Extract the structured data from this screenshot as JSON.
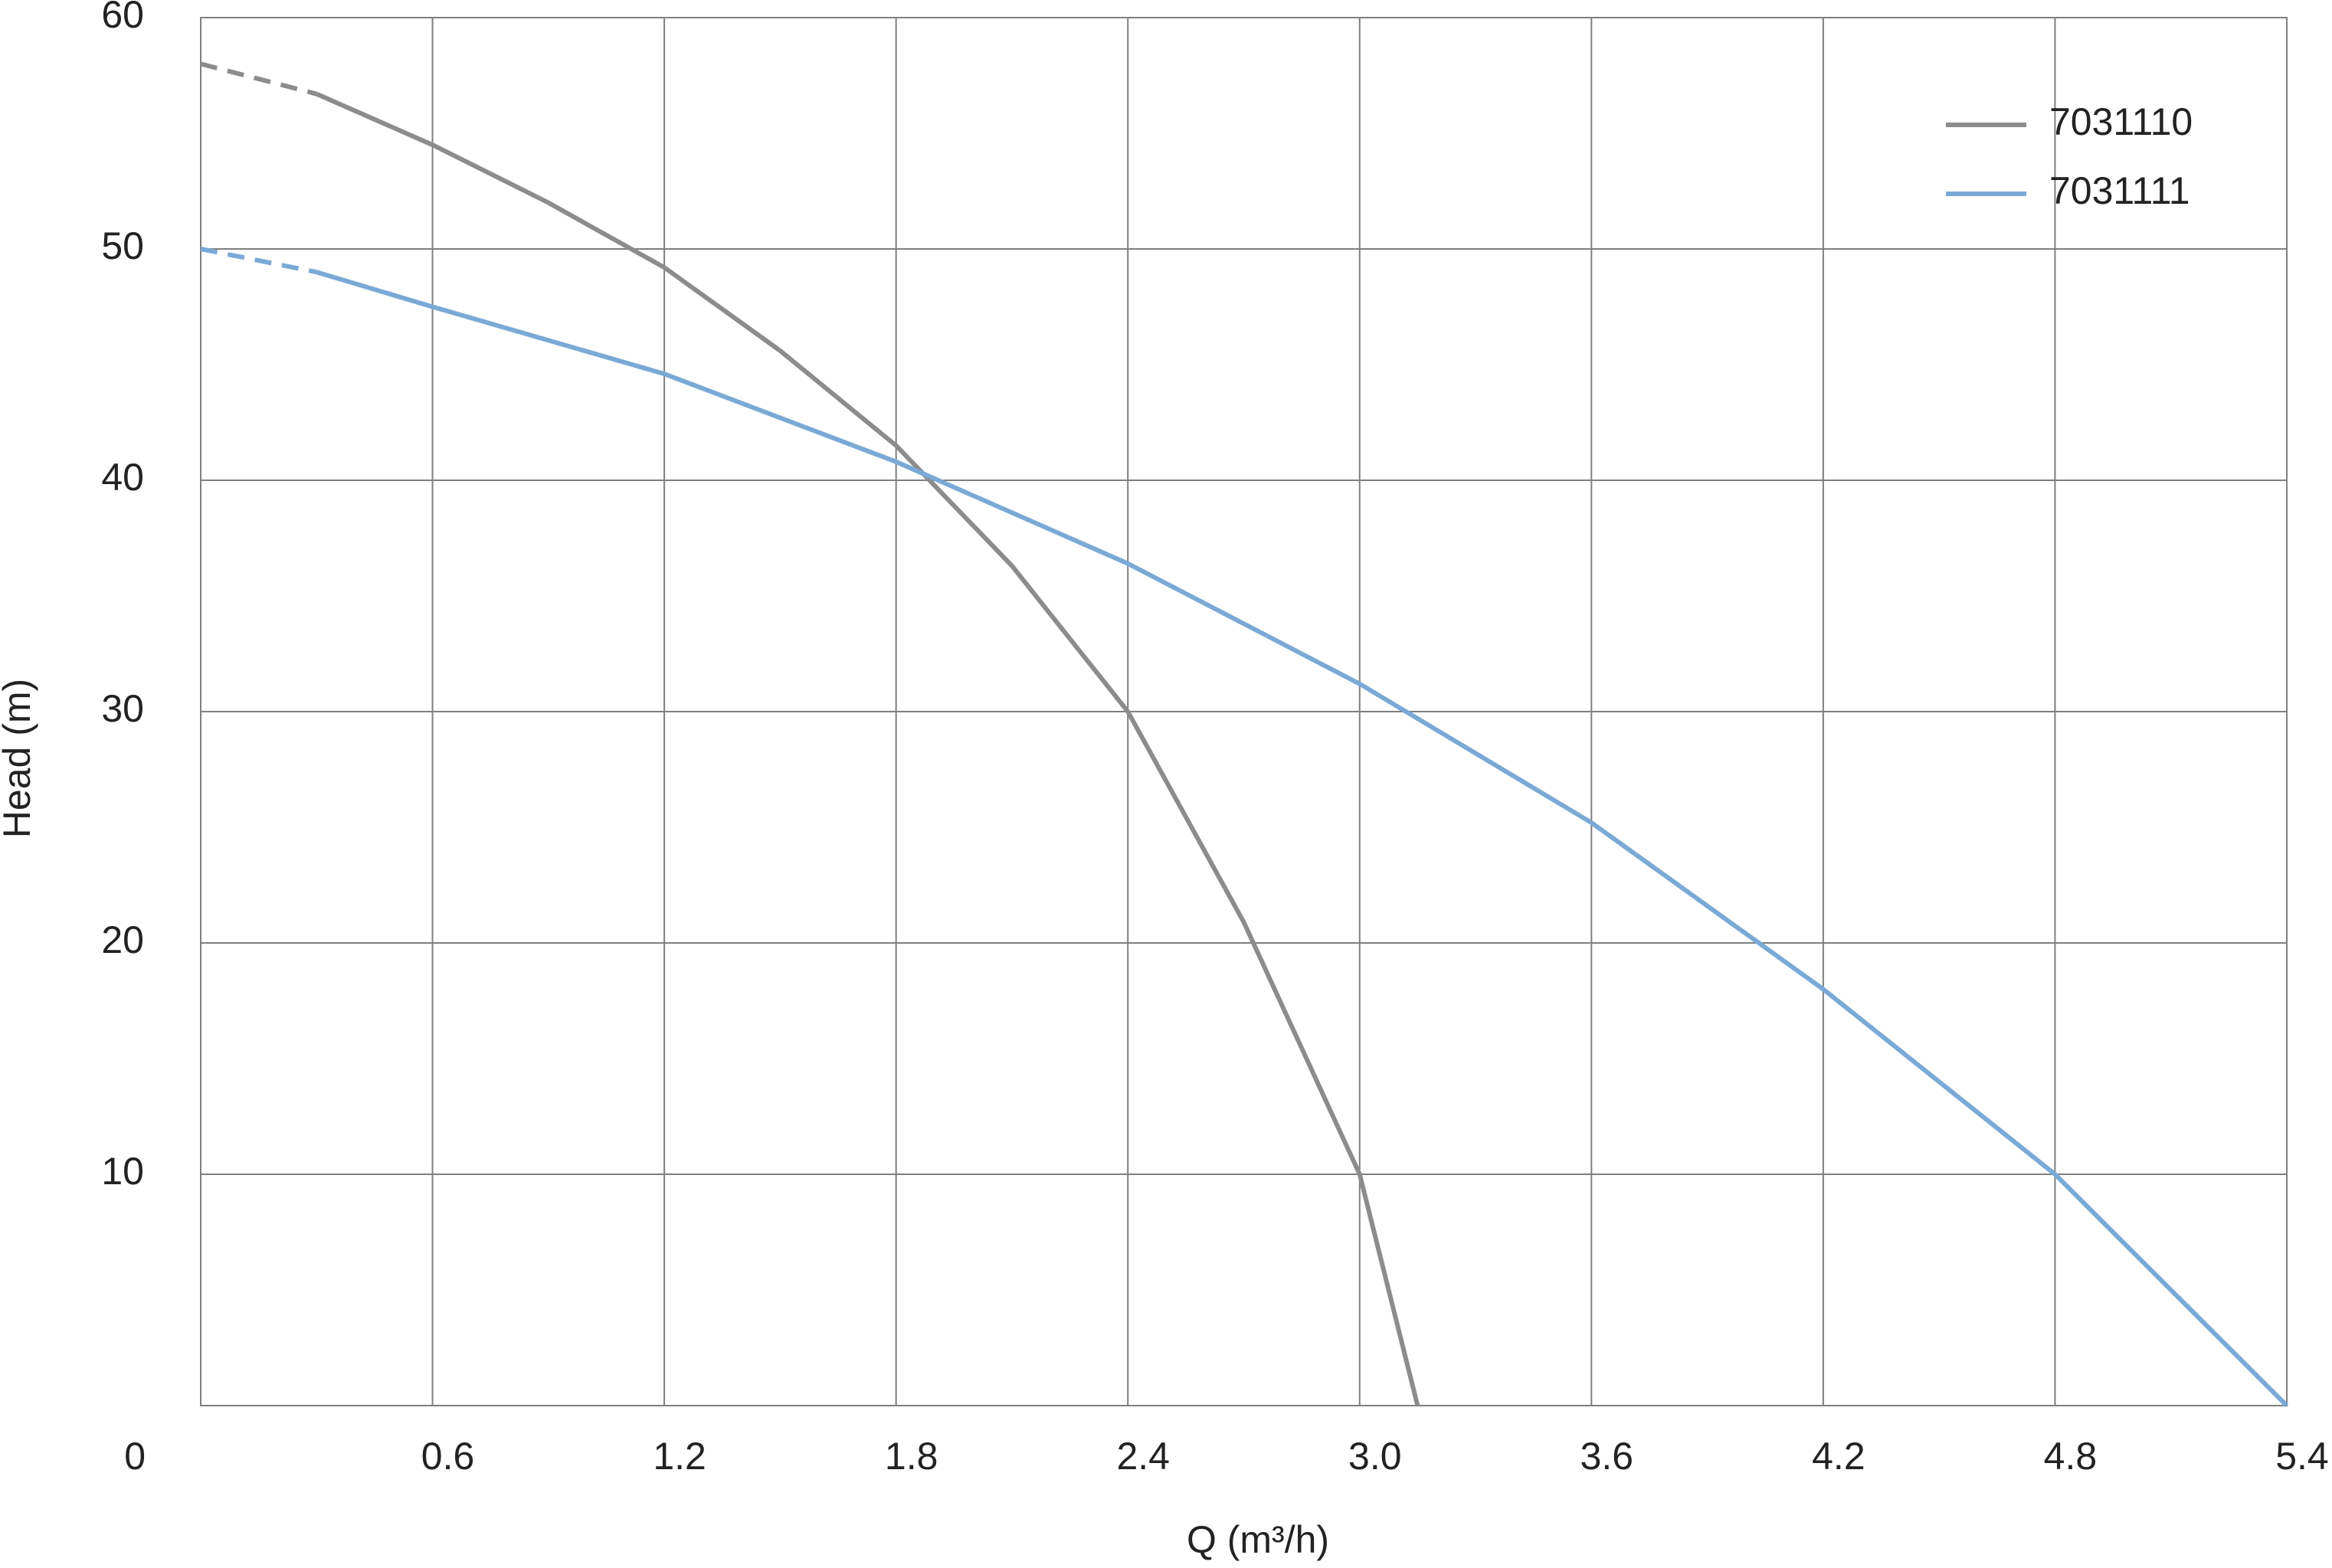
{
  "chart_data": {
    "type": "line",
    "x_label": "Q (m³/h)",
    "y_label": "Head (m)",
    "xlim": [
      0,
      5.4
    ],
    "ylim": [
      0,
      60
    ],
    "xticks": [
      0.6,
      1.2,
      1.8,
      2.4,
      {
        "value": 3,
        "label": "3.0"
      },
      3.6,
      4.2,
      4.8,
      5.4
    ],
    "yticks": [
      0,
      10,
      20,
      30,
      40,
      50,
      60
    ],
    "grid": true,
    "legend": "upper right",
    "series": [
      {
        "name": "7031110",
        "color": "#8c8c8c",
        "x": [
          0,
          0.3,
          0.6,
          0.9,
          1.2,
          1.5,
          1.8,
          2.1,
          2.4,
          2.7,
          3.0,
          3.15
        ],
        "values": [
          58,
          56.7,
          54.5,
          52,
          49.2,
          45.6,
          41.5,
          36.3,
          30,
          20.9,
          10,
          0
        ]
      },
      {
        "name": "7031111",
        "color": "#7aa9d6",
        "x": [
          0,
          0.3,
          0.6,
          1.2,
          1.8,
          2.4,
          3.0,
          3.6,
          4.2,
          4.8,
          5.4
        ],
        "values": [
          50,
          49,
          47.5,
          44.6,
          40.8,
          36.4,
          31.2,
          25.2,
          18,
          10,
          0
        ]
      }
    ]
  }
}
